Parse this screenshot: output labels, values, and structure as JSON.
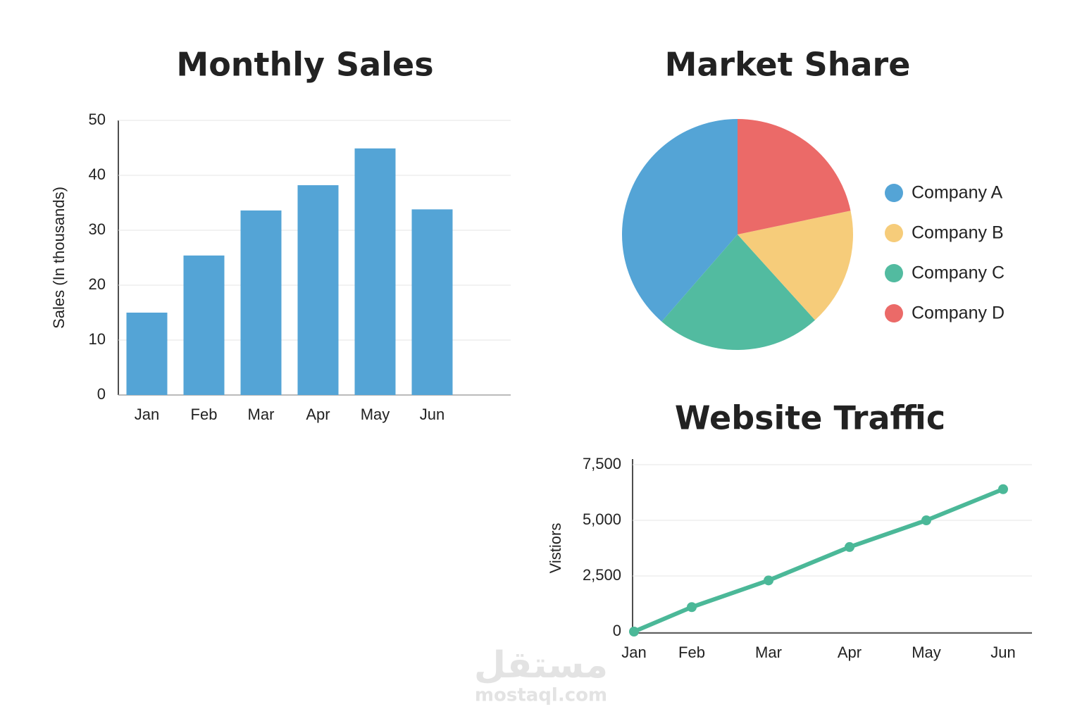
{
  "chart_data": [
    {
      "type": "bar",
      "title": "Monthly Sales",
      "y_label": "Sales (In thousands)",
      "categories": [
        "Jan",
        "Feb",
        "Mar",
        "Apr",
        "May",
        "Jun"
      ],
      "values": [
        15,
        25.4,
        33.6,
        38.2,
        44.9,
        33.8
      ],
      "color": "#54a4d6",
      "ylim": [
        0,
        50
      ],
      "yticks": [
        0,
        10,
        20,
        30,
        40,
        50
      ],
      "grid": true
    },
    {
      "type": "pie",
      "title": "Market Share",
      "categories": [
        "Company A",
        "Company B",
        "Company C",
        "Company D"
      ],
      "values": [
        38.6,
        16.6,
        23.1,
        21.7
      ],
      "colors": [
        "#54a4d6",
        "#f6cc7a",
        "#52bba0",
        "#eb6a68"
      ],
      "legend": "right"
    },
    {
      "type": "line",
      "title": "Website Traffic",
      "y_label": "Vistiors",
      "categories": [
        "Jan",
        "Feb",
        "Mar",
        "Apr",
        "May",
        "Jun"
      ],
      "values": [
        0,
        1100,
        2300,
        3800,
        5000,
        6400
      ],
      "color": "#4bb898",
      "ylim": [
        0,
        7500
      ],
      "yticks": [
        0,
        {
          "value": 2500,
          "label": "2,500"
        },
        {
          "value": 5000,
          "label": "5,000"
        },
        {
          "value": 7500,
          "label": "7,500"
        }
      ],
      "grid": true
    }
  ],
  "watermark": {
    "logo": "مستقل",
    "site": "mostaql.com"
  }
}
